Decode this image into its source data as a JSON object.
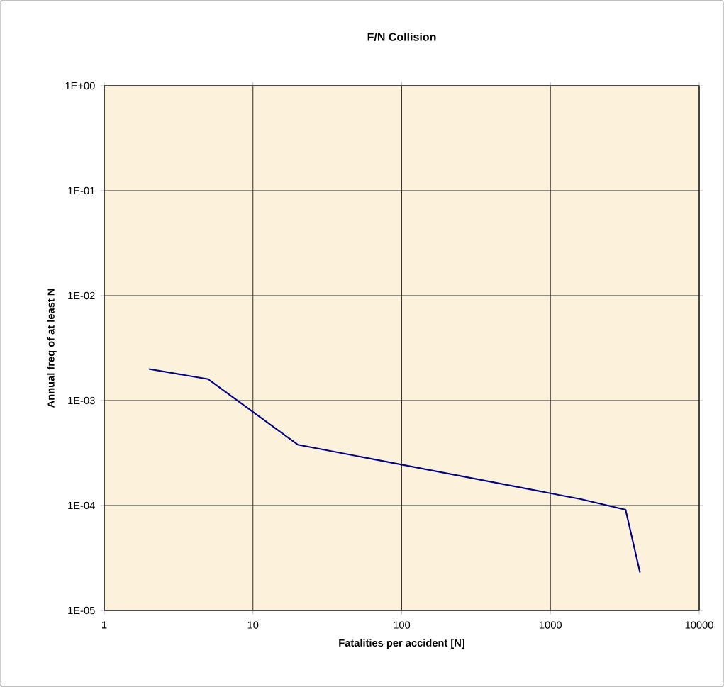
{
  "chart_data": {
    "type": "line",
    "title": "F/N Collision",
    "xlabel": "Fatalities per accident [N]",
    "ylabel": "Annual freq of at least N",
    "x": [
      2,
      5,
      20,
      1600,
      3200,
      4000
    ],
    "values": [
      0.002,
      0.0016,
      0.00038,
      0.000115,
      9.1e-05,
      2.3e-05
    ],
    "color": "#000080",
    "log": "xy",
    "grid": true,
    "marker": "none",
    "line_style": "solid",
    "xlim": [
      1,
      10000
    ],
    "xticks": [
      1,
      10,
      100,
      1000,
      10000
    ],
    "ylim": [
      1e-05,
      1
    ],
    "yticks": [
      {
        "value": 1e-05,
        "label": "1E-05"
      },
      {
        "value": 0.0001,
        "label": "1E-04"
      },
      {
        "value": 0.001,
        "label": "1E-03"
      },
      {
        "value": 0.01,
        "label": "1E-02"
      },
      {
        "value": 0.1,
        "label": "1E-01"
      },
      {
        "value": 1,
        "label": "1E+00"
      }
    ]
  }
}
